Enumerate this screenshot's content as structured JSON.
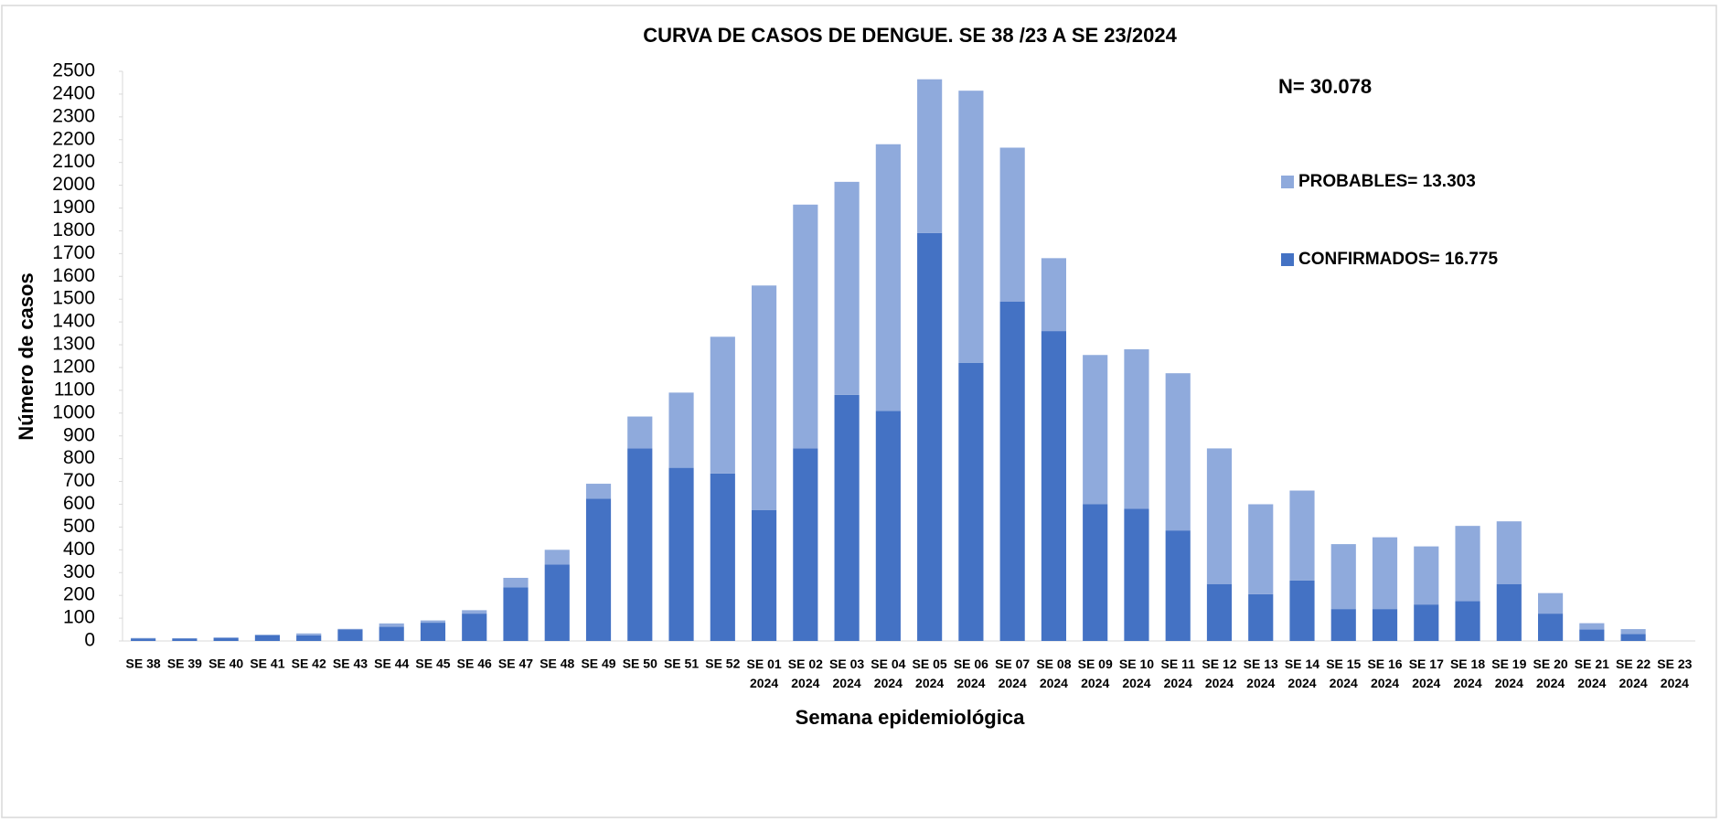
{
  "chart_data": {
    "type": "stacked_bar",
    "title": "CURVA DE CASOS DE DENGUE. SE 38 /23 A SE 23/2024",
    "annotation": "N= 30.078",
    "x_label": "Semana epidemiológica",
    "y_label": "Número de casos",
    "categories": [
      "SE 38",
      "SE 39",
      "SE 40",
      "SE 41",
      "SE 42",
      "SE 43",
      "SE 44",
      "SE 45",
      "SE 46",
      "SE 47",
      "SE 48",
      "SE 49",
      "SE 50",
      "SE 51",
      "SE 52",
      "SE 01 2024",
      "SE 02 2024",
      "SE 03 2024",
      "SE 04 2024",
      "SE 05 2024",
      "SE 06 2024",
      "SE 07 2024",
      "SE 08 2024",
      "SE 09 2024",
      "SE 10 2024",
      "SE 11 2024",
      "SE 12 2024",
      "SE 13 2024",
      "SE 14 2024",
      "SE 15 2024",
      "SE 16 2024",
      "SE 17 2024",
      "SE 18 2024",
      "SE 19 2024",
      "SE 20 2024",
      "SE 21 2024",
      "SE 22 2024",
      "SE 23 2024"
    ],
    "series": [
      {
        "name": "CONFIRMADOS= 16.775",
        "color": "#4472c4",
        "values": [
          10,
          10,
          13,
          25,
          25,
          50,
          62,
          80,
          120,
          235,
          335,
          625,
          845,
          760,
          735,
          575,
          845,
          1080,
          1010,
          1790,
          1220,
          1490,
          1360,
          600,
          580,
          485,
          250,
          205,
          265,
          140,
          140,
          160,
          175,
          250,
          120,
          50,
          30,
          0
        ]
      },
      {
        "name": "PROBABLES= 13.303",
        "color": "#8faadc",
        "values": [
          3,
          2,
          3,
          3,
          8,
          3,
          15,
          10,
          15,
          42,
          65,
          65,
          140,
          330,
          600,
          985,
          1070,
          935,
          1170,
          675,
          1195,
          675,
          320,
          655,
          700,
          690,
          595,
          395,
          395,
          285,
          315,
          255,
          330,
          275,
          90,
          28,
          22,
          0
        ]
      }
    ],
    "ylim": [
      0,
      2500
    ],
    "yticks": [
      0,
      100,
      200,
      300,
      400,
      500,
      600,
      700,
      800,
      900,
      1000,
      1100,
      1200,
      1300,
      1400,
      1500,
      1600,
      1700,
      1800,
      1900,
      2000,
      2100,
      2200,
      2300,
      2400,
      2500
    ]
  }
}
